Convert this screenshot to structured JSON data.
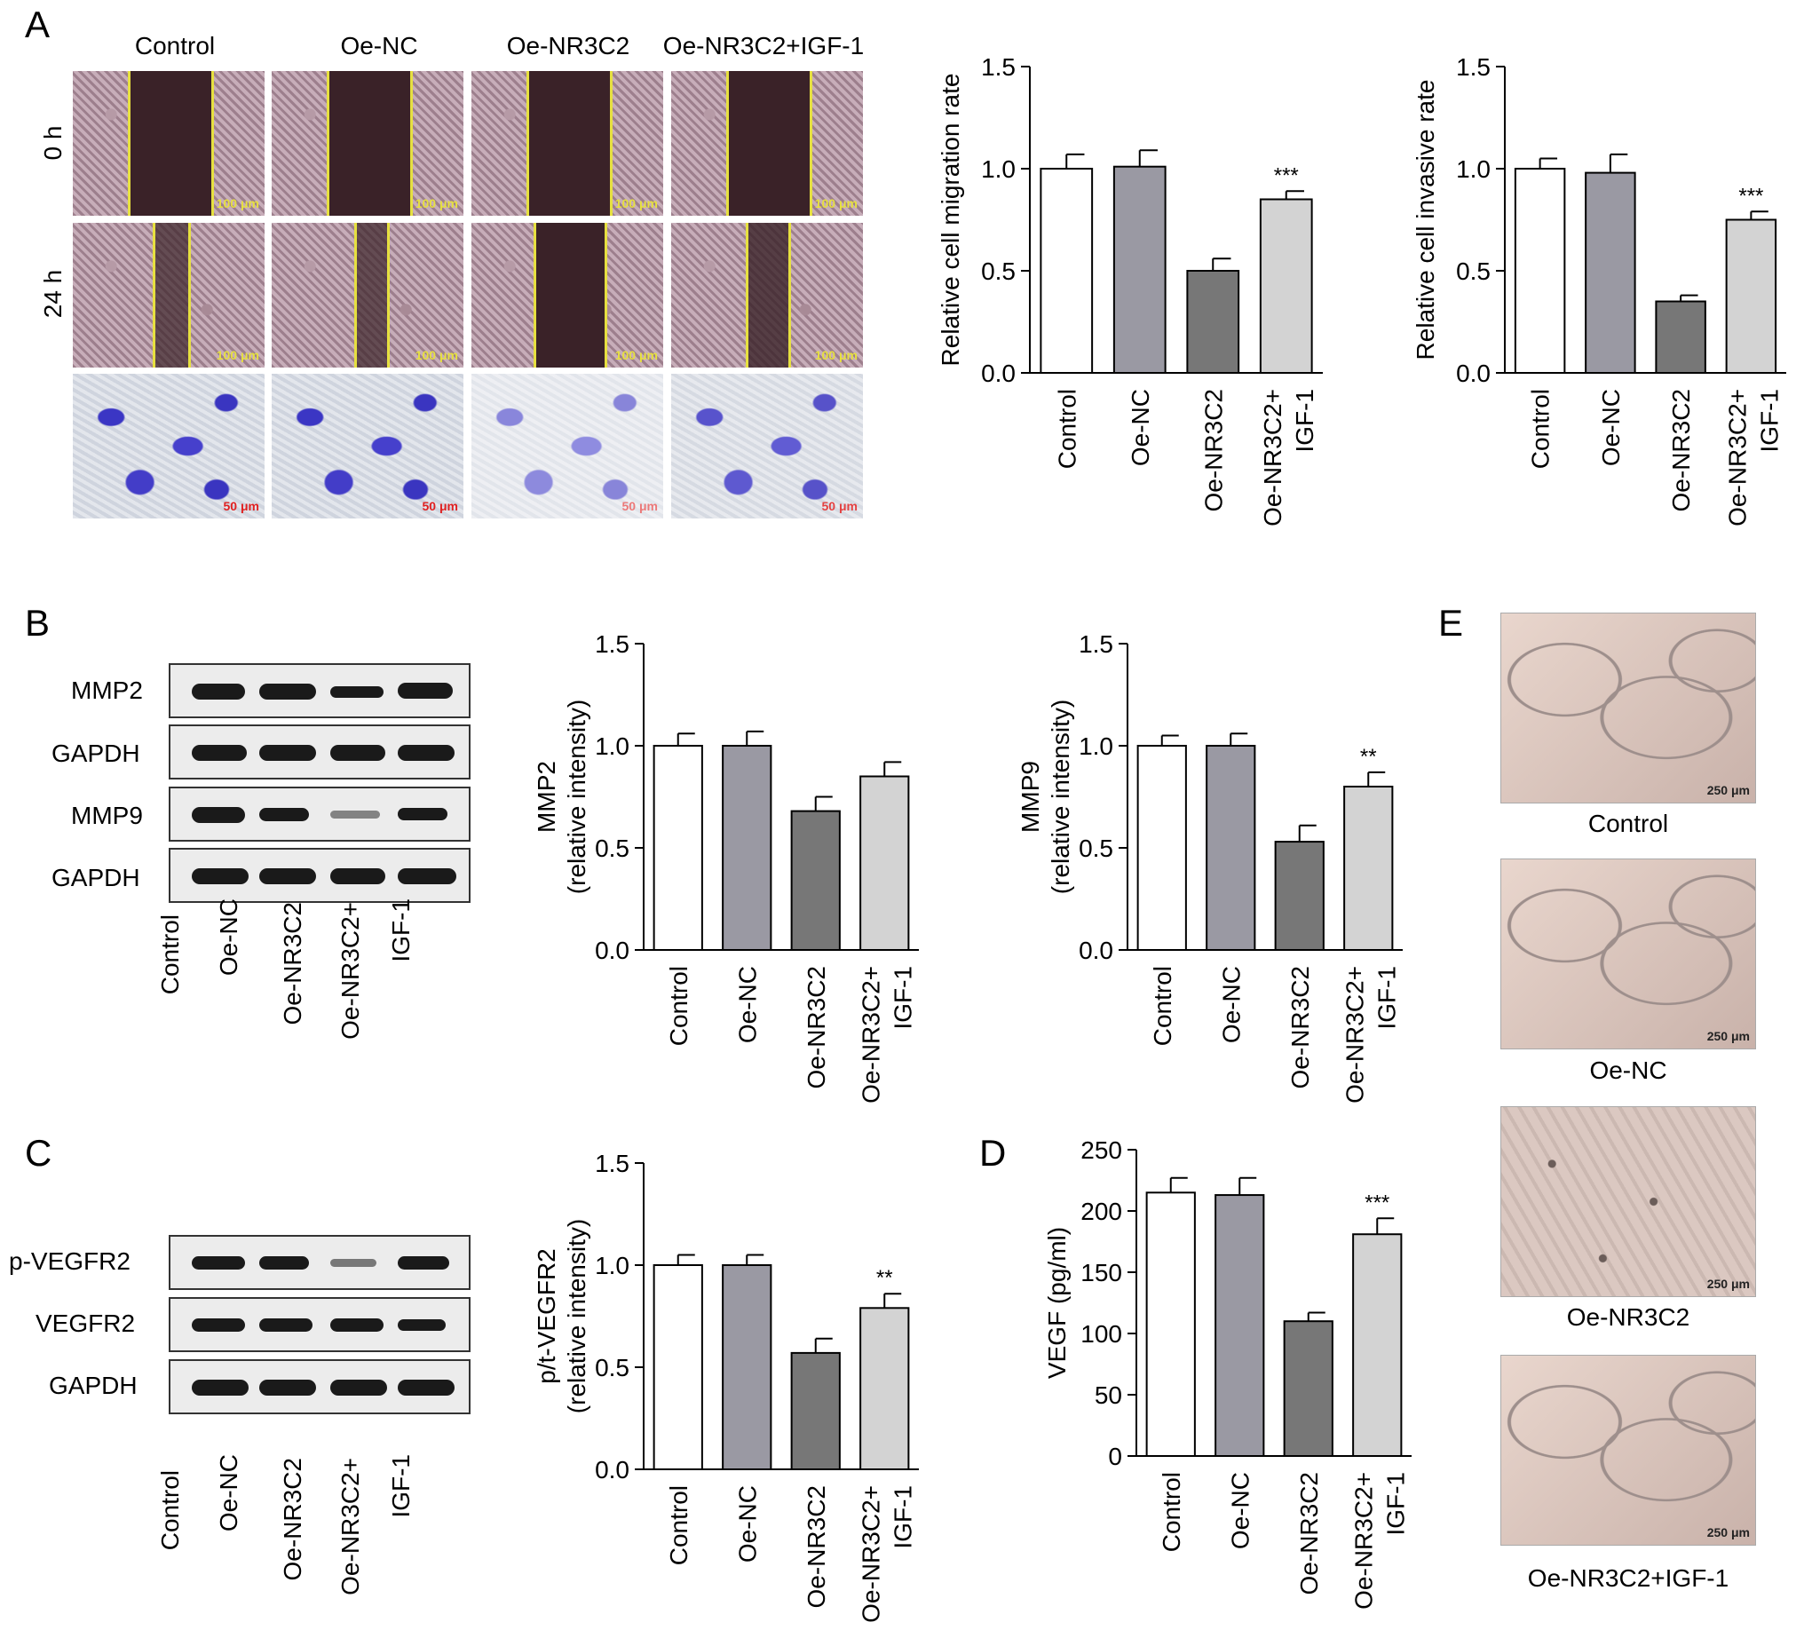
{
  "panels": {
    "A": "A",
    "B": "B",
    "C": "C",
    "D": "D",
    "E": "E"
  },
  "groups": [
    "Control",
    "Oe-NC",
    "Oe-NR3C2",
    "Oe-NR3C2+IGF-1"
  ],
  "panel_a": {
    "column_labels": [
      "Control",
      "Oe-NC",
      "Oe-NR3C2",
      "Oe-NR3C2+IGF-1"
    ],
    "row_labels": [
      "0 h",
      "24 h"
    ],
    "scale_wound": "100 μm",
    "scale_transwell": "50 μm"
  },
  "blot_b": {
    "rows": [
      "MMP2",
      "GAPDH",
      "MMP9",
      "GAPDH"
    ],
    "lane_labels": [
      "Control",
      "Oe-NC",
      "Oe-NR3C2",
      "Oe-NR3C2+",
      "IGF-1"
    ]
  },
  "blot_c": {
    "rows": [
      "p-VEGFR2",
      "VEGFR2",
      "GAPDH"
    ],
    "lane_labels": [
      "Control",
      "Oe-NC",
      "Oe-NR3C2",
      "Oe-NR3C2+",
      "IGF-1"
    ]
  },
  "panel_e": {
    "labels": [
      "Control",
      "Oe-NC",
      "Oe-NR3C2",
      "Oe-NR3C2+IGF-1"
    ],
    "scale": "250 μm"
  },
  "chart_data": [
    {
      "id": "migration",
      "type": "bar",
      "categories": [
        "Control",
        "Oe-NC",
        "Oe-NR3C2",
        "Oe-NR3C2+ IGF-1"
      ],
      "values": [
        1.0,
        1.01,
        0.5,
        0.85
      ],
      "errors": [
        0.07,
        0.08,
        0.06,
        0.04
      ],
      "ylabel": "Relative cell migration rate",
      "ylim": [
        0,
        1.5
      ],
      "yticks": [
        "0.0",
        "0.5",
        "1.0",
        "1.5"
      ],
      "annotations": [
        "",
        "",
        "",
        "***"
      ],
      "colors": [
        "#ffffff",
        "#9a99a3",
        "#777777",
        "#d3d3d3"
      ]
    },
    {
      "id": "invasion",
      "type": "bar",
      "categories": [
        "Control",
        "Oe-NC",
        "Oe-NR3C2",
        "Oe-NR3C2+ IGF-1"
      ],
      "values": [
        1.0,
        0.98,
        0.35,
        0.75
      ],
      "errors": [
        0.05,
        0.09,
        0.03,
        0.04
      ],
      "ylabel": "Relative cell invasive rate",
      "ylim": [
        0,
        1.5
      ],
      "yticks": [
        "0.0",
        "0.5",
        "1.0",
        "1.5"
      ],
      "annotations": [
        "",
        "",
        "",
        "***"
      ],
      "colors": [
        "#ffffff",
        "#9a99a3",
        "#777777",
        "#d3d3d3"
      ]
    },
    {
      "id": "mmp2",
      "type": "bar",
      "categories": [
        "Control",
        "Oe-NC",
        "Oe-NR3C2",
        "Oe-NR3C2+ IGF-1"
      ],
      "values": [
        1.0,
        1.0,
        0.68,
        0.85
      ],
      "errors": [
        0.06,
        0.07,
        0.07,
        0.07
      ],
      "ylabel": [
        "MMP2",
        "(relative intensity)"
      ],
      "ylim": [
        0,
        1.5
      ],
      "yticks": [
        "0.0",
        "0.5",
        "1.0",
        "1.5"
      ],
      "annotations": [
        "",
        "",
        "",
        ""
      ],
      "colors": [
        "#ffffff",
        "#9a99a3",
        "#777777",
        "#d3d3d3"
      ]
    },
    {
      "id": "mmp9",
      "type": "bar",
      "categories": [
        "Control",
        "Oe-NC",
        "Oe-NR3C2",
        "Oe-NR3C2+ IGF-1"
      ],
      "values": [
        1.0,
        1.0,
        0.53,
        0.8
      ],
      "errors": [
        0.05,
        0.06,
        0.08,
        0.07
      ],
      "ylabel": [
        "MMP9",
        "(relative intensity)"
      ],
      "ylim": [
        0,
        1.5
      ],
      "yticks": [
        "0.0",
        "0.5",
        "1.0",
        "1.5"
      ],
      "annotations": [
        "",
        "",
        "",
        "**"
      ],
      "colors": [
        "#ffffff",
        "#9a99a3",
        "#777777",
        "#d3d3d3"
      ]
    },
    {
      "id": "vegfr2",
      "type": "bar",
      "categories": [
        "Control",
        "Oe-NC",
        "Oe-NR3C2",
        "Oe-NR3C2+ IGF-1"
      ],
      "values": [
        1.0,
        1.0,
        0.57,
        0.79
      ],
      "errors": [
        0.05,
        0.05,
        0.07,
        0.07
      ],
      "ylabel": [
        "p/t-VEGFR2",
        "(relative intensity)"
      ],
      "ylim": [
        0,
        1.5
      ],
      "yticks": [
        "0.0",
        "0.5",
        "1.0",
        "1.5"
      ],
      "annotations": [
        "",
        "",
        "",
        "**"
      ],
      "colors": [
        "#ffffff",
        "#9a99a3",
        "#777777",
        "#d3d3d3"
      ]
    },
    {
      "id": "vegf",
      "type": "bar",
      "categories": [
        "Control",
        "Oe-NC",
        "Oe-NR3C2",
        "Oe-NR3C2+ IGF-1"
      ],
      "values": [
        215,
        213,
        110,
        181
      ],
      "errors": [
        12,
        14,
        7,
        13
      ],
      "ylabel": "VEGF (pg/ml)",
      "ylim": [
        0,
        250
      ],
      "yticks": [
        "0",
        "50",
        "100",
        "150",
        "200",
        "250"
      ],
      "annotations": [
        "",
        "",
        "",
        "***"
      ],
      "colors": [
        "#ffffff",
        "#9a99a3",
        "#777777",
        "#d3d3d3"
      ]
    }
  ]
}
